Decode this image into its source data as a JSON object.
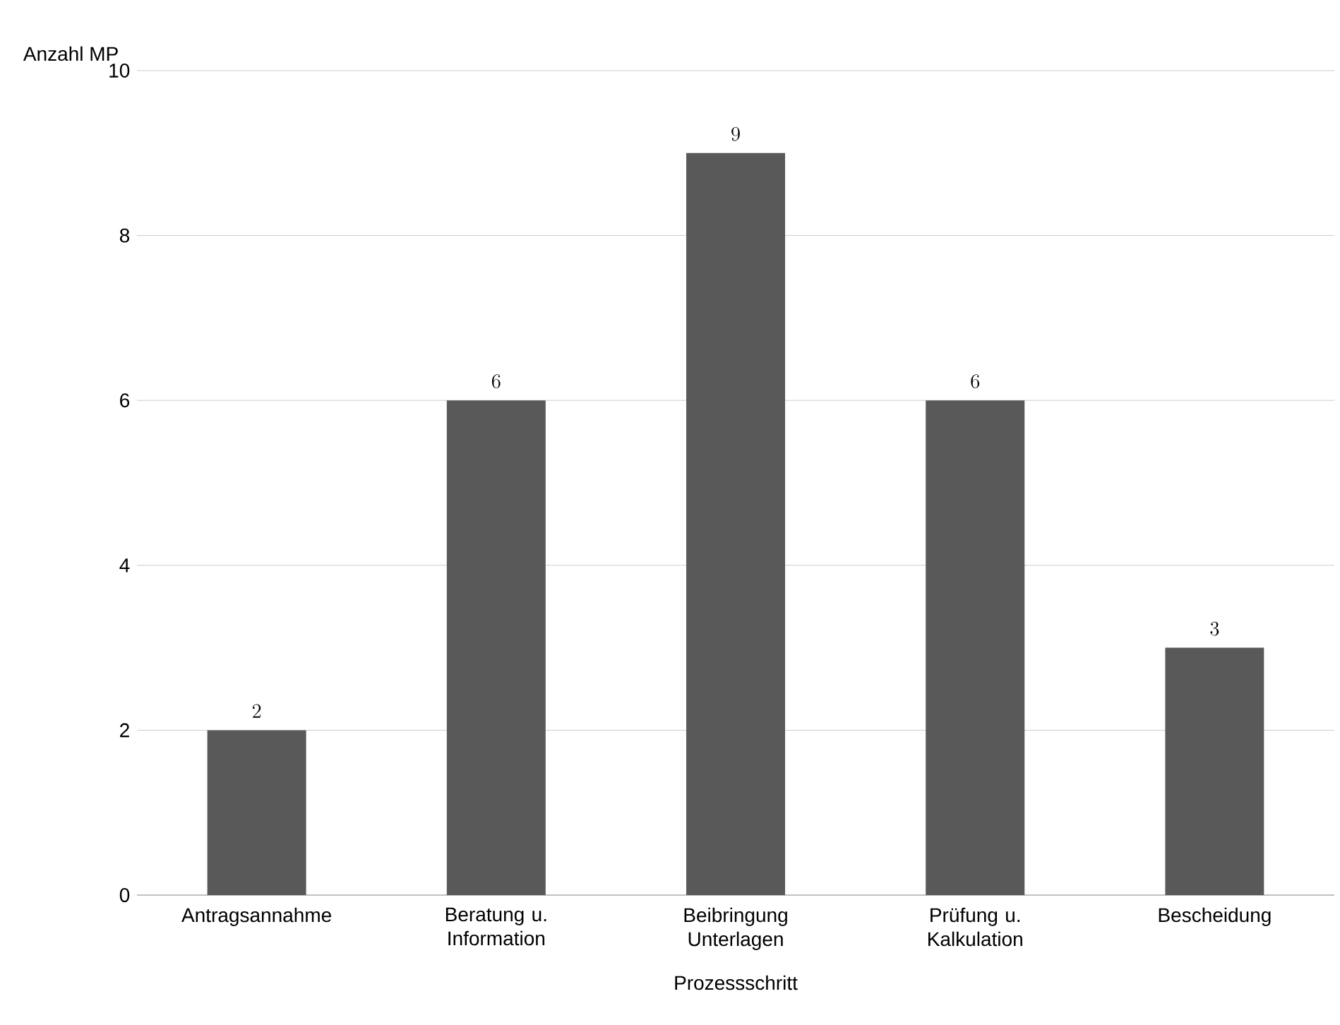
{
  "chart_data": {
    "type": "bar",
    "xlabel": "Prozessschritt",
    "ylabel": "Anzahl MP",
    "categories": [
      "Antragsannahme",
      "Beratung u. Information",
      "Beibringung Unterlagen",
      "Prüfung u. Kalkulation",
      "Bescheidung"
    ],
    "values": [
      2,
      6,
      9,
      6,
      3
    ],
    "color": "#595959",
    "ylim": [
      0,
      10
    ],
    "yticks": [
      0,
      2,
      4,
      6,
      8,
      10
    ],
    "grid": "y",
    "data_labels": true
  }
}
